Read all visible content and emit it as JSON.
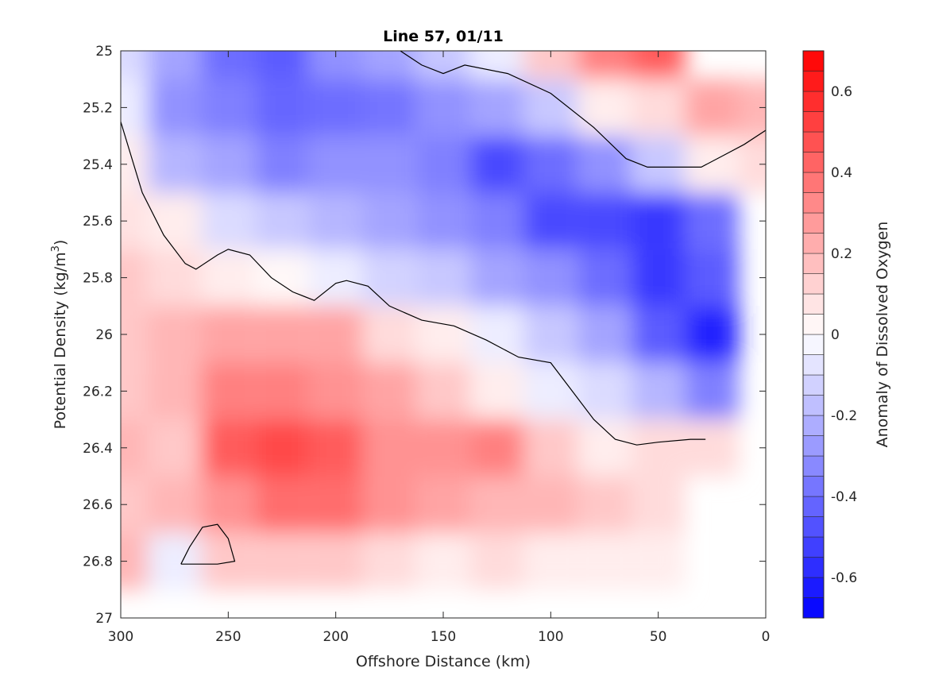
{
  "chart_data": {
    "type": "heatmap",
    "title": "Line 57, 01/11",
    "xlabel": "Offshore Distance (km)",
    "ylabel_main": "Potential Density (kg/m",
    "ylabel_sup": "3",
    "ylabel_end": ")",
    "xlim": [
      300,
      0
    ],
    "ylim": [
      27,
      25
    ],
    "x_reversed": true,
    "y_reversed": true,
    "x_ticks": [
      300,
      250,
      200,
      150,
      100,
      50,
      0
    ],
    "x_tick_labels": [
      "300",
      "250",
      "200",
      "150",
      "100",
      "50",
      "0"
    ],
    "y_ticks": [
      25,
      25.2,
      25.4,
      25.6,
      25.8,
      26,
      26.2,
      26.4,
      26.6,
      26.8,
      27
    ],
    "y_tick_labels": [
      "25",
      "25.2",
      "25.4",
      "25.6",
      "25.8",
      "26",
      "26.2",
      "26.4",
      "26.6",
      "26.8",
      "27"
    ],
    "colorbar": {
      "label": "Anomaly of Dissolved Oxygen",
      "range": [
        -0.7,
        0.7
      ],
      "step": 0.05,
      "ticks": [
        0.6,
        0.4,
        0.2,
        0,
        -0.2,
        -0.4,
        -0.6
      ],
      "tick_labels": [
        "0.6",
        "0.4",
        "0.2",
        "0",
        "-0.2",
        "-0.4",
        "-0.6"
      ],
      "low_color": "#0000ff",
      "mid_color": "#ffffff",
      "high_color": "#ff0000"
    },
    "zero_contour": [
      [
        300,
        25.25
      ],
      [
        290,
        25.5
      ],
      [
        280,
        25.65
      ],
      [
        270,
        25.75
      ],
      [
        265,
        25.77
      ],
      [
        255,
        25.72
      ],
      [
        250,
        25.7
      ],
      [
        240,
        25.72
      ],
      [
        230,
        25.8
      ],
      [
        220,
        25.85
      ],
      [
        210,
        25.88
      ],
      [
        200,
        25.82
      ],
      [
        195,
        25.81
      ],
      [
        185,
        25.83
      ],
      [
        175,
        25.9
      ],
      [
        160,
        25.95
      ],
      [
        145,
        25.97
      ],
      [
        130,
        26.02
      ],
      [
        115,
        26.08
      ],
      [
        100,
        26.1
      ],
      [
        90,
        26.2
      ],
      [
        80,
        26.3
      ],
      [
        70,
        26.37
      ],
      [
        60,
        26.39
      ],
      [
        50,
        26.38
      ],
      [
        35,
        26.37
      ],
      [
        28,
        26.37
      ]
    ],
    "zero_contour_top": [
      [
        170,
        25.0
      ],
      [
        160,
        25.05
      ],
      [
        150,
        25.08
      ],
      [
        140,
        25.05
      ],
      [
        120,
        25.08
      ],
      [
        100,
        25.15
      ],
      [
        80,
        25.27
      ],
      [
        65,
        25.38
      ],
      [
        55,
        25.41
      ],
      [
        45,
        25.41
      ],
      [
        30,
        25.41
      ],
      [
        20,
        25.37
      ],
      [
        10,
        25.33
      ],
      [
        0,
        25.28
      ]
    ],
    "zero_contour_blob": [
      [
        272,
        26.81
      ],
      [
        268,
        26.75
      ],
      [
        262,
        26.68
      ],
      [
        255,
        26.67
      ],
      [
        250,
        26.72
      ],
      [
        247,
        26.8
      ],
      [
        255,
        26.81
      ],
      [
        265,
        26.81
      ],
      [
        272,
        26.81
      ]
    ],
    "anomaly_field": {
      "x_km": [
        300,
        275,
        250,
        225,
        200,
        175,
        150,
        125,
        100,
        75,
        50,
        25,
        0
      ],
      "density": [
        25.0,
        25.2,
        25.4,
        25.6,
        25.8,
        26.0,
        26.2,
        26.4,
        26.6,
        26.8
      ],
      "values": [
        [
          -0.1,
          -0.25,
          -0.4,
          -0.45,
          -0.3,
          -0.25,
          -0.15,
          -0.05,
          0.15,
          0.35,
          0.45,
          null,
          null
        ],
        [
          -0.05,
          -0.3,
          -0.35,
          -0.42,
          -0.4,
          -0.38,
          -0.3,
          -0.25,
          -0.15,
          0.05,
          0.1,
          0.25,
          0.2
        ],
        [
          0.05,
          -0.2,
          -0.25,
          -0.35,
          -0.3,
          -0.3,
          -0.35,
          -0.5,
          -0.4,
          -0.3,
          -0.15,
          0.05,
          0.1
        ],
        [
          0.08,
          0.05,
          -0.1,
          -0.15,
          -0.2,
          -0.25,
          -0.3,
          -0.35,
          -0.5,
          -0.5,
          -0.55,
          -0.4,
          null
        ],
        [
          0.15,
          0.1,
          0.05,
          0.02,
          -0.05,
          -0.12,
          -0.15,
          -0.25,
          -0.3,
          -0.4,
          -0.55,
          -0.45,
          null
        ],
        [
          0.15,
          0.2,
          0.25,
          0.25,
          0.25,
          0.1,
          0.05,
          -0.05,
          -0.15,
          -0.25,
          -0.45,
          -0.6,
          null
        ],
        [
          0.15,
          0.2,
          0.35,
          0.35,
          0.3,
          0.25,
          0.15,
          0.05,
          -0.05,
          -0.1,
          -0.2,
          -0.35,
          null
        ],
        [
          0.2,
          0.15,
          0.45,
          0.5,
          0.45,
          0.3,
          0.3,
          0.35,
          0.15,
          0.05,
          0.1,
          0.1,
          null
        ],
        [
          0.15,
          0.2,
          0.3,
          0.4,
          0.4,
          0.3,
          0.25,
          0.2,
          0.2,
          0.15,
          0.1,
          null,
          null
        ],
        [
          0.2,
          -0.05,
          0.15,
          0.15,
          0.15,
          0.1,
          0.05,
          0.1,
          0.05,
          0.05,
          0.05,
          null,
          null
        ]
      ]
    }
  }
}
